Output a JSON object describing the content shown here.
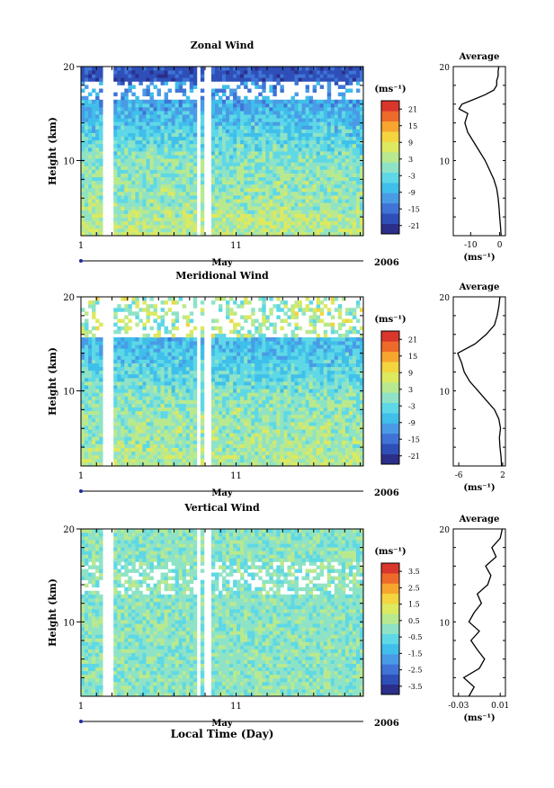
{
  "chart_data": [
    {
      "type": "heatmap",
      "title": "Zonal Wind",
      "ylabel": "Height (km)",
      "ylim": [
        2,
        20
      ],
      "yticks": [
        10,
        20
      ],
      "x_ticks": [
        "1",
        "11"
      ],
      "month": "May",
      "year": "2006",
      "colorbar": {
        "unit": "(ms⁻¹)",
        "ticks": [
          "21",
          "15",
          "9",
          "3",
          "-3",
          "-9",
          "-15",
          "-21"
        ],
        "range": [
          -24,
          24
        ]
      },
      "data_gaps_day": [
        [
          2.5,
          3.2
        ],
        [
          8.4,
          8.6
        ],
        [
          9.0,
          9.3
        ]
      ],
      "average_profile": {
        "title": "Average",
        "xlabel": "(ms⁻¹)",
        "xticks": [
          "-10",
          "0"
        ],
        "xlim": [
          -16,
          2
        ],
        "heights": [
          2,
          3,
          4,
          5,
          6,
          7,
          8,
          9,
          10,
          11,
          12,
          13,
          14,
          15,
          15.5,
          16,
          16.5,
          17,
          17.5,
          18,
          18.5,
          19,
          19.5,
          20
        ],
        "values": [
          0.5,
          0.3,
          0,
          -0.2,
          -0.5,
          -1,
          -2,
          -3.5,
          -5,
          -7,
          -9,
          -11,
          -12,
          -11,
          -14,
          -13,
          -9,
          -5,
          -2,
          -1,
          -1,
          -0.5,
          -0.5,
          -0.3
        ]
      }
    },
    {
      "type": "heatmap",
      "title": "Meridional Wind",
      "ylabel": "Height (km)",
      "ylim": [
        2,
        20
      ],
      "yticks": [
        10,
        20
      ],
      "x_ticks": [
        "1",
        "11"
      ],
      "month": "May",
      "year": "2006",
      "colorbar": {
        "unit": "(ms⁻¹)",
        "ticks": [
          "21",
          "15",
          "9",
          "3",
          "-3",
          "-9",
          "-15",
          "-21"
        ],
        "range": [
          -24,
          24
        ]
      },
      "data_gaps_day": [
        [
          2.5,
          3.2
        ],
        [
          8.4,
          8.6
        ],
        [
          9.0,
          9.3
        ]
      ],
      "average_profile": {
        "title": "Average",
        "xlabel": "(ms⁻¹)",
        "xticks": [
          "-6",
          "2"
        ],
        "xlim": [
          -7,
          2.5
        ],
        "heights": [
          2,
          3,
          4,
          5,
          6,
          7,
          8,
          9,
          10,
          11,
          12,
          13,
          14,
          15,
          16,
          17,
          18,
          19,
          20
        ],
        "values": [
          1.8,
          1.7,
          1.5,
          1.4,
          1.6,
          1.3,
          0.5,
          -1,
          -2.5,
          -4,
          -5,
          -5.5,
          -6.2,
          -3,
          -1,
          0.5,
          1,
          1.3,
          1.5
        ]
      }
    },
    {
      "type": "heatmap",
      "title": "Vertical Wind",
      "ylabel": "Height (km)",
      "xlabel": "Local Time (Day)",
      "ylim": [
        2,
        20
      ],
      "yticks": [
        10,
        20
      ],
      "x_ticks": [
        "1",
        "11"
      ],
      "month": "May",
      "year": "2006",
      "colorbar": {
        "unit": "(ms⁻¹)",
        "ticks": [
          "3.5",
          "2.5",
          "1.5",
          "0.5",
          "-0.5",
          "-1.5",
          "-2.5",
          "-3.5"
        ],
        "range": [
          -4,
          4
        ]
      },
      "data_gaps_day": [
        [
          2.5,
          3.2
        ],
        [
          8.4,
          8.6
        ],
        [
          9.0,
          9.3
        ]
      ],
      "average_profile": {
        "title": "Average",
        "xlabel": "(ms⁻¹)",
        "xticks": [
          "-0.03",
          "0.01"
        ],
        "xlim": [
          -0.035,
          0.015
        ],
        "heights": [
          2,
          3,
          4,
          5,
          6,
          7,
          8,
          9,
          10,
          11,
          12,
          13,
          14,
          15,
          16,
          17,
          18,
          19,
          20
        ],
        "values": [
          -0.02,
          -0.015,
          -0.025,
          -0.01,
          -0.005,
          -0.012,
          -0.018,
          -0.01,
          -0.02,
          -0.015,
          -0.008,
          -0.012,
          -0.002,
          0.001,
          -0.004,
          0.006,
          0.002,
          0.01,
          0.012
        ]
      }
    }
  ]
}
